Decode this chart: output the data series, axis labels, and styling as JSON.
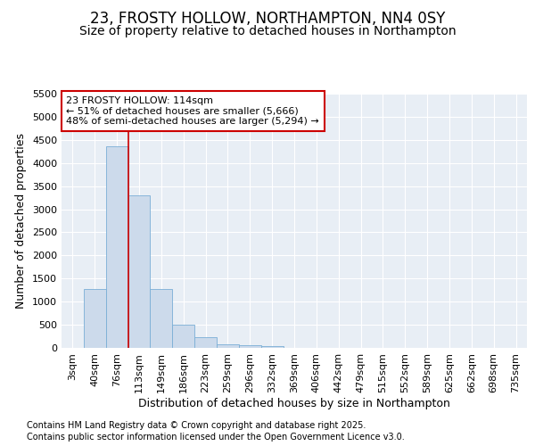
{
  "title": "23, FROSTY HOLLOW, NORTHAMPTON, NN4 0SY",
  "subtitle": "Size of property relative to detached houses in Northampton",
  "xlabel": "Distribution of detached houses by size in Northampton",
  "ylabel": "Number of detached properties",
  "categories": [
    "3sqm",
    "40sqm",
    "76sqm",
    "113sqm",
    "149sqm",
    "186sqm",
    "223sqm",
    "259sqm",
    "296sqm",
    "332sqm",
    "369sqm",
    "406sqm",
    "442sqm",
    "479sqm",
    "515sqm",
    "552sqm",
    "589sqm",
    "625sqm",
    "662sqm",
    "698sqm",
    "735sqm"
  ],
  "values": [
    0,
    1270,
    4370,
    3300,
    1280,
    500,
    230,
    80,
    50,
    30,
    5,
    0,
    0,
    0,
    0,
    0,
    0,
    0,
    0,
    0,
    0
  ],
  "bar_color": "#ccdaeb",
  "bar_edge_color": "#7aaed6",
  "vline_index": 3,
  "vline_color": "#cc0000",
  "annotation_text": "23 FROSTY HOLLOW: 114sqm\n← 51% of detached houses are smaller (5,666)\n48% of semi-detached houses are larger (5,294) →",
  "annotation_box_facecolor": "#ffffff",
  "annotation_box_edgecolor": "#cc0000",
  "ylim": [
    0,
    5500
  ],
  "yticks": [
    0,
    500,
    1000,
    1500,
    2000,
    2500,
    3000,
    3500,
    4000,
    4500,
    5000,
    5500
  ],
  "background_color": "#e8eef5",
  "grid_color": "#ffffff",
  "footer_line1": "Contains HM Land Registry data © Crown copyright and database right 2025.",
  "footer_line2": "Contains public sector information licensed under the Open Government Licence v3.0.",
  "title_fontsize": 12,
  "subtitle_fontsize": 10,
  "axis_label_fontsize": 9,
  "tick_fontsize": 8,
  "annotation_fontsize": 8,
  "footer_fontsize": 7
}
